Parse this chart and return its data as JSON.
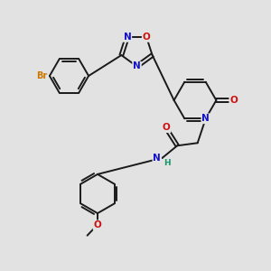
{
  "background_color": "#e2e2e2",
  "bond_color": "#1a1a1a",
  "bond_width": 1.4,
  "atom_colors": {
    "Br": "#cc7700",
    "N": "#1111cc",
    "O": "#cc1111",
    "N_H": "#119966",
    "C": "#1a1a1a"
  },
  "font_size_atom": 7.5
}
